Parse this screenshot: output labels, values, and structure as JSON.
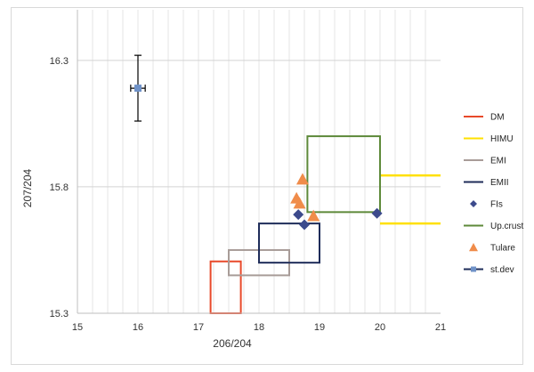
{
  "chart_data": {
    "type": "scatter",
    "xlabel": "206/204",
    "ylabel": "207/204",
    "xlim": [
      15,
      21
    ],
    "ylim": [
      15.3,
      16.5
    ],
    "x_ticks": [
      "15",
      "16",
      "17",
      "18",
      "19",
      "20",
      "21"
    ],
    "y_ticks": [
      {
        "value": 15.3,
        "label": "15.3"
      },
      {
        "value": 15.8,
        "label": "15.8"
      },
      {
        "value": 16.3,
        "label": "16.3"
      }
    ],
    "grid": {
      "vertical_minor_step": 0.25,
      "horizontal_major": [
        15.8,
        16.3
      ]
    },
    "legend_position": "right",
    "series": [
      {
        "name": "DM",
        "kind": "box",
        "color": "#e8492a",
        "x": [
          17.2,
          17.7
        ],
        "y": [
          15.3,
          15.505
        ]
      },
      {
        "name": "HIMU",
        "kind": "open-box",
        "color": "#ffe000",
        "x": [
          20.0,
          21.0
        ],
        "y": [
          15.655,
          15.845
        ]
      },
      {
        "name": "EMI",
        "kind": "box",
        "color": "#a89c98",
        "x": [
          17.5,
          18.5
        ],
        "y": [
          15.45,
          15.55
        ]
      },
      {
        "name": "EMII",
        "kind": "box",
        "color": "#1f2d5a",
        "x": [
          18.0,
          19.0
        ],
        "y": [
          15.5,
          15.655
        ]
      },
      {
        "name": "FIs",
        "kind": "marker",
        "marker": "diamond",
        "color": "#3c4a8c",
        "points": [
          [
            18.65,
            15.69
          ],
          [
            18.75,
            15.65
          ],
          [
            19.95,
            15.695
          ]
        ]
      },
      {
        "name": "Up.crust",
        "kind": "box",
        "color": "#5e8a3a",
        "x": [
          18.8,
          20.0
        ],
        "y": [
          15.7,
          16.0
        ]
      },
      {
        "name": "Tulare",
        "kind": "marker",
        "marker": "triangle",
        "color": "#f08c4a",
        "points": [
          [
            18.72,
            15.83
          ],
          [
            18.62,
            15.755
          ],
          [
            18.67,
            15.735
          ],
          [
            18.9,
            15.685
          ]
        ]
      },
      {
        "name": "st.dev",
        "kind": "errorbar",
        "color": "#1f2d5a",
        "marker_color": "#6f92c8",
        "points": [
          [
            16.0,
            16.19
          ]
        ],
        "xerr": 0.12,
        "yerr": 0.13
      }
    ]
  }
}
